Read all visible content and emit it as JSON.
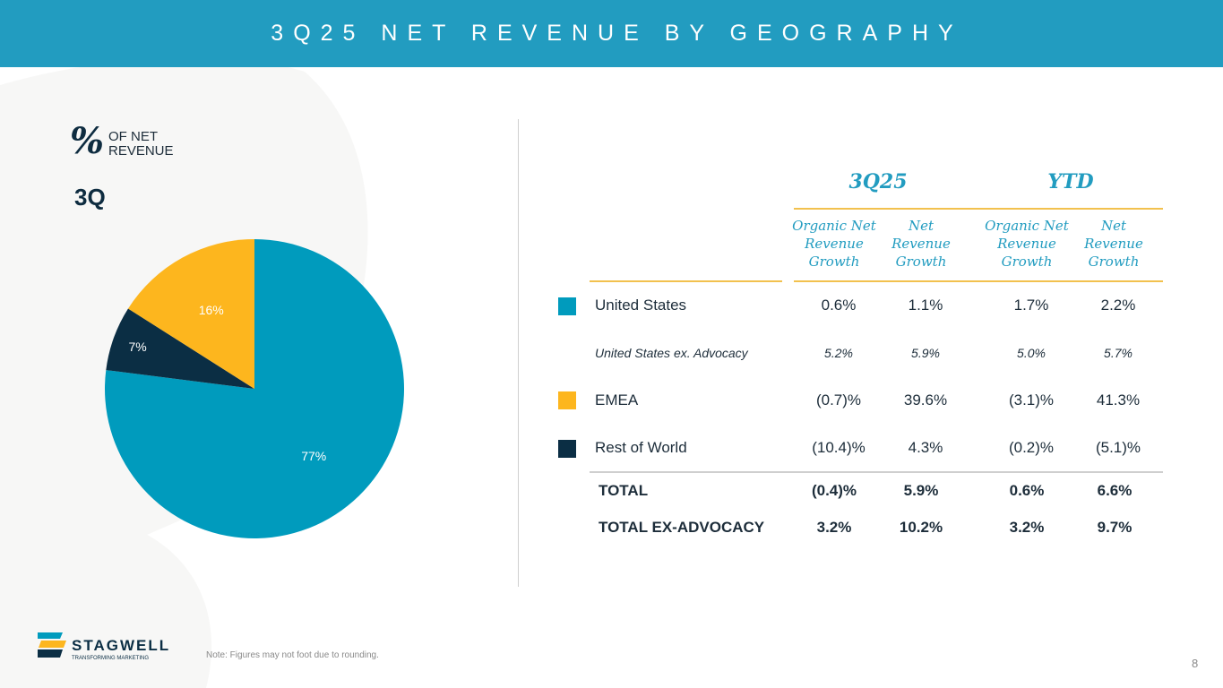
{
  "header": {
    "title": "3Q25 NET REVENUE BY GEOGRAPHY"
  },
  "left": {
    "pct_symbol": "%",
    "pct_label": "OF NET REVENUE",
    "period": "3Q"
  },
  "colors": {
    "united_states": "#009bbd",
    "emea": "#fdb61e",
    "rest_of_world": "#0b2e44",
    "accent": "#229cc0"
  },
  "chart_data": {
    "type": "pie",
    "title": "3Q",
    "slices": [
      {
        "name": "United States",
        "value": 77,
        "label": "77%",
        "color": "#009bbd"
      },
      {
        "name": "Rest of World",
        "value": 7,
        "label": "7%",
        "color": "#0b2e44"
      },
      {
        "name": "EMEA",
        "value": 16,
        "label": "16%",
        "color": "#fdb61e"
      }
    ]
  },
  "table": {
    "groups": [
      "3Q25",
      "YTD"
    ],
    "columns": [
      "Organic Net Revenue Growth",
      "Net Revenue Growth",
      "Organic Net Revenue Growth",
      "Net Revenue Growth"
    ],
    "rows": [
      {
        "label": "United States",
        "values": [
          "0.6%",
          "1.1%",
          "1.7%",
          "2.2%"
        ]
      },
      {
        "label": "United States ex. Advocacy",
        "values": [
          "5.2%",
          "5.9%",
          "5.0%",
          "5.7%"
        ]
      },
      {
        "label": "EMEA",
        "values": [
          "(0.7)%",
          "39.6%",
          "(3.1)%",
          "41.3%"
        ]
      },
      {
        "label": "Rest of World",
        "values": [
          "(10.4)%",
          "4.3%",
          "(0.2)%",
          "(5.1)%"
        ]
      }
    ],
    "totals": [
      {
        "label": "TOTAL",
        "values": [
          "(0.4)%",
          "5.9%",
          "0.6%",
          "6.6%"
        ]
      },
      {
        "label": "TOTAL EX-ADVOCACY",
        "values": [
          "3.2%",
          "10.2%",
          "3.2%",
          "9.7%"
        ]
      }
    ]
  },
  "footer": {
    "logo_name": "STAGWELL",
    "logo_tagline": "TRANSFORMING MARKETING",
    "note": "Note: Figures may not foot due to rounding.",
    "page": "8"
  }
}
